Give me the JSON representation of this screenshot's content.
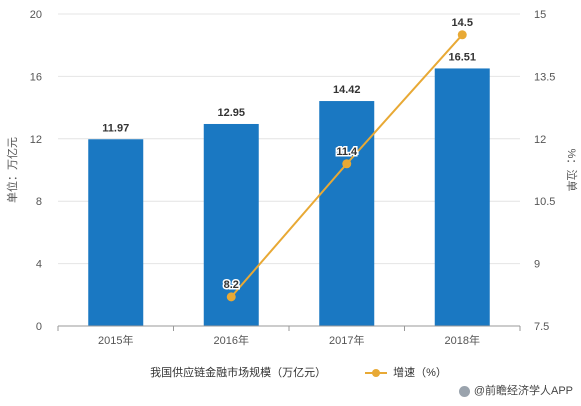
{
  "chart_data": {
    "type": "bar",
    "categories": [
      "2015年",
      "2016年",
      "2017年",
      "2018年"
    ],
    "series": [
      {
        "name": "我国供应链金融市场规模（万亿元）",
        "type": "bar",
        "axis": "left",
        "color": "#1a78c2",
        "values": [
          11.97,
          12.95,
          14.42,
          16.51
        ],
        "labels": [
          "11.97",
          "12.95",
          "14.42",
          "16.51"
        ]
      },
      {
        "name": "增速（%）",
        "type": "line",
        "axis": "right",
        "color": "#e8a935",
        "values": [
          null,
          8.2,
          11.4,
          14.5
        ],
        "labels": [
          "",
          "8.2",
          "11.4",
          "14.5"
        ]
      }
    ],
    "ylabel": "单位：万亿元",
    "y2label": "%：泣单",
    "ylim": [
      0,
      20
    ],
    "yticks": [
      "0",
      "4",
      "8",
      "12",
      "16",
      "20"
    ],
    "y2lim": [
      7.5,
      15
    ],
    "y2ticks": [
      "7.5",
      "9",
      "10.5",
      "12",
      "13.5",
      "15"
    ],
    "grid": "horizontal",
    "legend_position": "bottom"
  },
  "source": {
    "text": "@前瞻经济学人APP"
  }
}
